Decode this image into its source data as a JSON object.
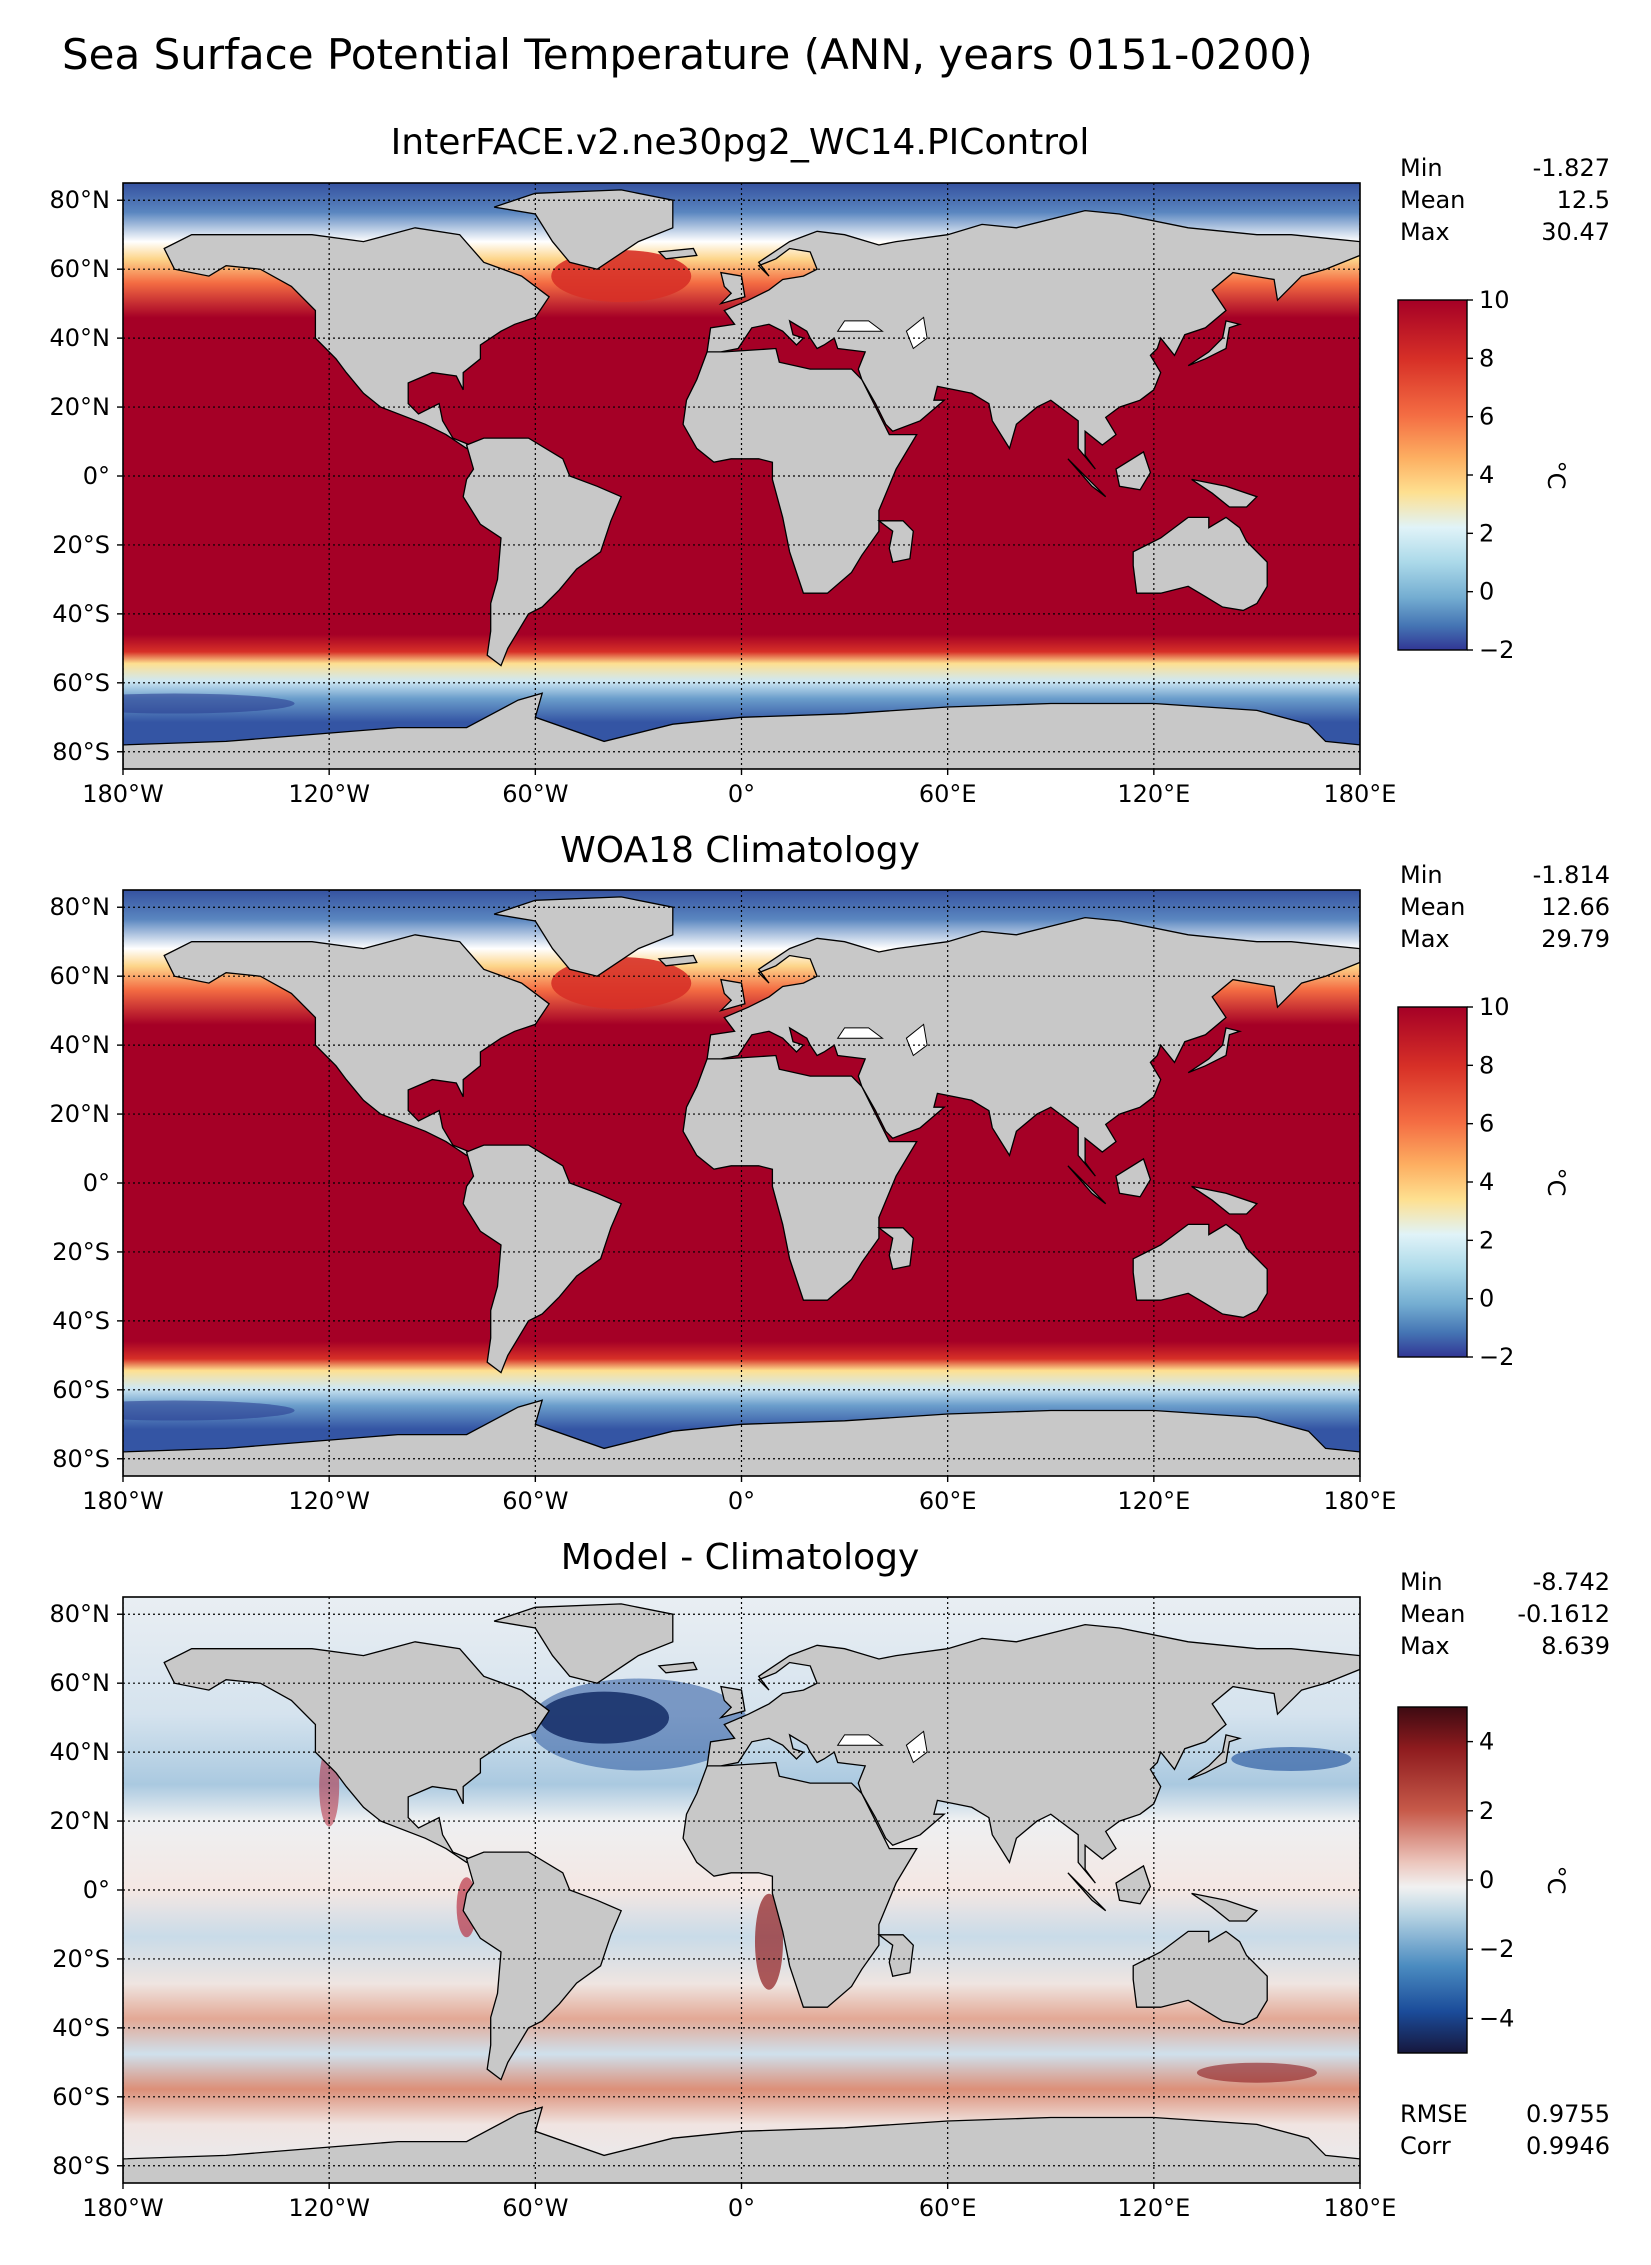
{
  "figure": {
    "title": "Sea Surface Potential Temperature (ANN, years 0151-0200)"
  },
  "axes": {
    "x_ticks": [
      "180°W",
      "120°W",
      "60°W",
      "0°",
      "60°E",
      "120°E",
      "180°E"
    ],
    "y_ticks": [
      "80°N",
      "60°N",
      "40°N",
      "20°N",
      "0°",
      "20°S",
      "40°S",
      "60°S",
      "80°S"
    ]
  },
  "colors": {
    "land": "#c8c8c8",
    "warm_ocean": "#a50026",
    "cold_ocean": "#3e60a8",
    "diff_neutral": "#f2f0f0"
  },
  "panels": [
    {
      "title": "InterFACE.v2.ne30pg2_WC14.PIControl",
      "stats": [
        {
          "label": "Min",
          "value": "-1.827"
        },
        {
          "label": "Mean",
          "value": "12.5"
        },
        {
          "label": "Max",
          "value": "30.47"
        }
      ],
      "colorbar": {
        "colormap": "RdYlBu_r",
        "ticks": [
          "10",
          "8",
          "6",
          "4",
          "2",
          "0",
          "−2"
        ],
        "units": "°C"
      }
    },
    {
      "title": "WOA18 Climatology",
      "stats": [
        {
          "label": "Min",
          "value": "-1.814"
        },
        {
          "label": "Mean",
          "value": "12.66"
        },
        {
          "label": "Max",
          "value": "29.79"
        }
      ],
      "colorbar": {
        "colormap": "RdYlBu_r",
        "ticks": [
          "10",
          "8",
          "6",
          "4",
          "2",
          "0",
          "−2"
        ],
        "units": "°C"
      }
    },
    {
      "title": "Model - Climatology",
      "stats": [
        {
          "label": "Min",
          "value": "-8.742"
        },
        {
          "label": "Mean",
          "value": "-0.1612"
        },
        {
          "label": "Max",
          "value": "8.639"
        }
      ],
      "extra_stats": [
        {
          "label": "RMSE",
          "value": "0.9755"
        },
        {
          "label": "Corr",
          "value": "0.9946"
        }
      ],
      "colorbar": {
        "colormap": "RdBu_r (balance)",
        "ticks": [
          "4",
          "2",
          "0",
          "−2",
          "−4"
        ],
        "units": "°C"
      }
    }
  ]
}
